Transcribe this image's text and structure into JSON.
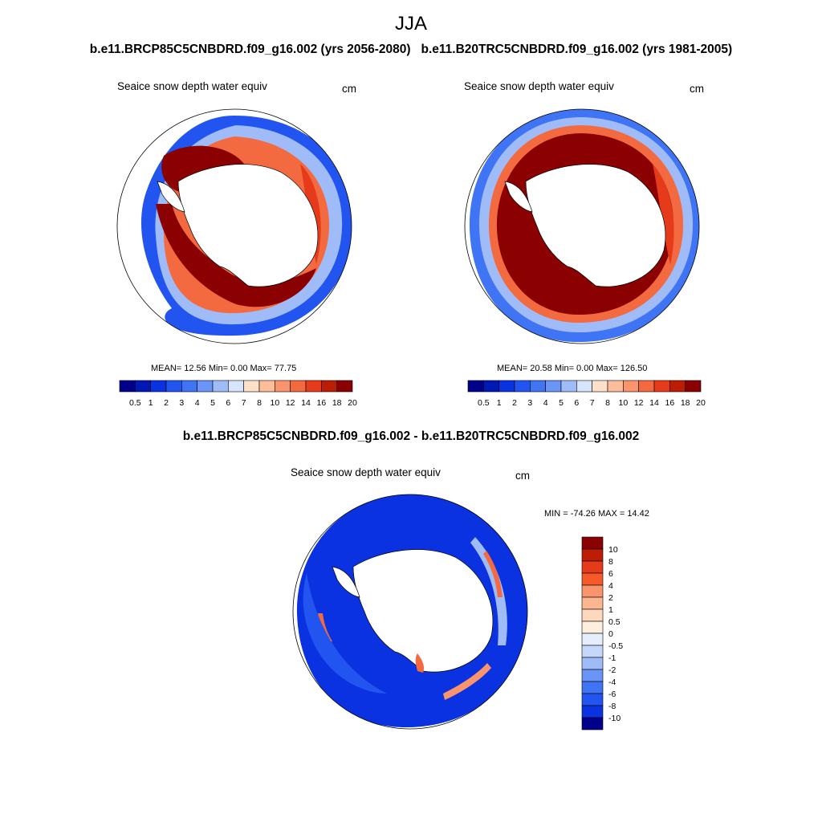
{
  "figure": {
    "season": "JJA",
    "left_case_title": "b.e11.BRCP85C5CNBDRD.f09_g16.002 (yrs 2056-2080)",
    "right_case_title": "b.e11.B20TRC5CNBDRD.f09_g16.002 (yrs 1981-2005)",
    "diff_title": "b.e11.BRCP85C5CNBDRD.f09_g16.002 - b.e11.B20TRC5CNBDRD.f09_g16.002"
  },
  "panels": {
    "future": {
      "variable": "Seaice snow depth water equiv",
      "units": "cm",
      "stats": "MEAN=  12.56  Min=   0.00  Max=  77.75"
    },
    "historical": {
      "variable": "Seaice snow depth water equiv",
      "units": "cm",
      "stats": "MEAN=  20.58  Min=   0.00  Max= 126.50"
    },
    "difference": {
      "variable": "Seaice snow depth water equiv",
      "units": "cm",
      "stats": "MIN = -74.26 MAX =  14.42"
    }
  },
  "colorbar_abs": {
    "labels": [
      "0.5",
      "1",
      "2",
      "3",
      "4",
      "5",
      "6",
      "7",
      "8",
      "10",
      "12",
      "14",
      "16",
      "18",
      "20"
    ],
    "colors": [
      "#00008b",
      "#0018b4",
      "#0a32e0",
      "#2255f0",
      "#3f74f5",
      "#6a95f7",
      "#9fbcf8",
      "#d6e5fb",
      "#fde0c8",
      "#fbbd9a",
      "#f9946c",
      "#f36a40",
      "#e63b1a",
      "#bd1c05",
      "#8b0000"
    ]
  },
  "colorbar_diff": {
    "labels": [
      "10",
      "8",
      "6",
      "4",
      "2",
      "1",
      "0.5",
      "0",
      "-0.5",
      "-1",
      "-2",
      "-4",
      "-6",
      "-8",
      "-10"
    ],
    "colors": [
      "#8b0000",
      "#bd1c05",
      "#e63b1a",
      "#f55a28",
      "#f9946c",
      "#fbb58f",
      "#fdd8bd",
      "#fdeede",
      "#e4eefc",
      "#c6d8f9",
      "#9fbcf8",
      "#6a95f7",
      "#3f74f5",
      "#2255f0",
      "#0a32e0",
      "#00008b"
    ]
  }
}
